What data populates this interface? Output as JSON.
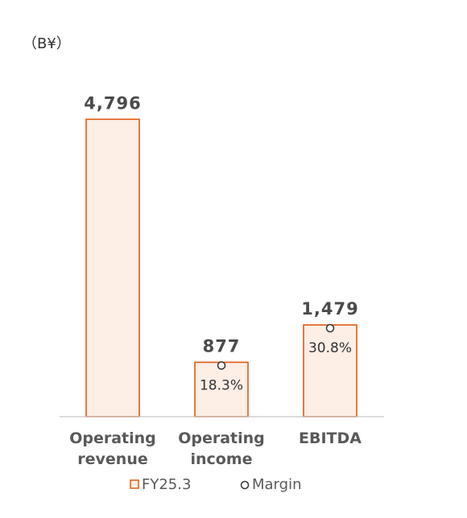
{
  "chart_data": {
    "type": "bar",
    "unit_label": "（B¥）",
    "categories": [
      [
        "Operating",
        "revenue"
      ],
      [
        "Operating",
        "income"
      ],
      [
        "EBITDA"
      ]
    ],
    "series": [
      {
        "name": "FY25.3",
        "values": [
          4796,
          877,
          1479
        ],
        "labels": [
          "4,796",
          "877",
          "1,479"
        ]
      },
      {
        "name": "Margin",
        "values": [
          null,
          18.3,
          30.8
        ],
        "labels": [
          "",
          "18.3%",
          "30.8%"
        ]
      }
    ],
    "ylim": [
      0,
      4800
    ],
    "grid": false,
    "legend": "bottom",
    "colors": {
      "bar_fill": "#fdeee6",
      "bar_stroke": "#e05a10",
      "axis": "#c8c8c8",
      "marker": "#333333"
    }
  }
}
